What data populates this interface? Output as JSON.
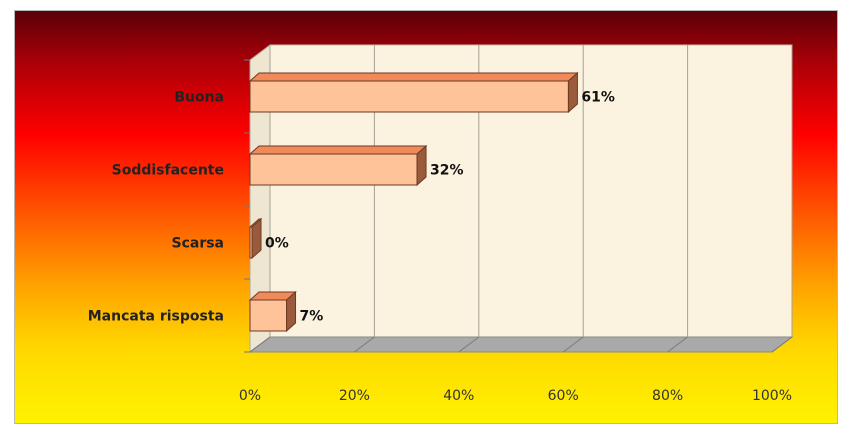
{
  "chart_data": {
    "type": "bar",
    "orientation": "horizontal",
    "style": "3d",
    "categories": [
      "Buona",
      "Soddisfacente",
      "Scarsa",
      "Mancata risposta"
    ],
    "values": [
      61,
      32,
      0,
      7
    ],
    "data_labels": [
      "61%",
      "32%",
      "0%",
      "7%"
    ],
    "x_ticks": [
      "0%",
      "20%",
      "40%",
      "60%",
      "80%",
      "100%"
    ],
    "xlim": [
      0,
      100
    ],
    "grid": true,
    "legend": false,
    "colors": {
      "bar_front": "#ffc39a",
      "bar_top": "#f08a5a",
      "bar_side": "#9a5a3c",
      "bar_stroke": "#6e3a22",
      "plot_wall": "#fbf3df",
      "floor": "#a9a9a9"
    }
  }
}
